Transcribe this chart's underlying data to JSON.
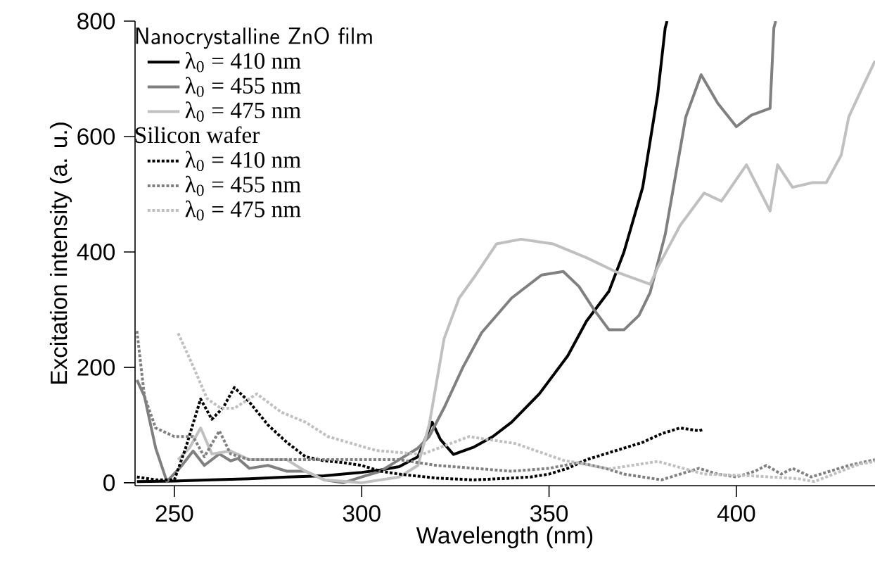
{
  "chart_data": {
    "type": "line",
    "xlabel": "Wavelength (nm)",
    "ylabel": "Excitation intensity (a. u.)",
    "legend_title": "Nanocrystalline ZnO film",
    "annotations": [
      "Silicon wafer"
    ],
    "xlim": [
      239.5,
      437
    ],
    "ylim": [
      -5,
      800
    ],
    "xticks": [
      250,
      300,
      350,
      400
    ],
    "yticks": [
      0,
      200,
      400,
      600,
      800
    ],
    "legend": "top left",
    "grid": false,
    "marker": "none",
    "series": [
      {
        "name": "λ$_{0}$ = 410 nm",
        "color": "#000000",
        "line_style": "solid",
        "x": [
          240,
          250,
          260,
          270,
          280,
          290,
          300,
          305,
          310,
          315,
          318.8,
          321,
          324.5,
          330,
          335,
          340,
          347.4,
          355,
          360,
          366,
          370,
          375,
          379,
          381,
          381.5
        ],
        "values": [
          2,
          3,
          5,
          7,
          10,
          12,
          18,
          22,
          28,
          45,
          105,
          75,
          49,
          62,
          80,
          105,
          154,
          220,
          280,
          332,
          400,
          512,
          673,
          788,
          800
        ]
      },
      {
        "name": "λ$_{0}$ = 455 nm",
        "color": "#808080",
        "line_style": "solid",
        "x": [
          240,
          242,
          245,
          248,
          252,
          255,
          258,
          262,
          265,
          267,
          270,
          275,
          280,
          285,
          290,
          295,
          300,
          305,
          310,
          315,
          318,
          322,
          327,
          332,
          340,
          348,
          353.8,
          358,
          362,
          366,
          370,
          374,
          377,
          381,
          386.5,
          390.6,
          395,
          400,
          404,
          409,
          410,
          410.5
        ],
        "values": [
          178,
          150,
          60,
          2,
          30,
          55,
          30,
          50,
          38,
          42,
          25,
          30,
          20,
          20,
          5,
          0,
          10,
          20,
          40,
          60,
          80,
          130,
          200,
          260,
          320,
          360,
          366,
          340,
          300,
          265,
          265,
          290,
          330,
          430,
          634,
          707,
          658,
          617,
          637,
          649,
          788,
          800
        ]
      },
      {
        "name": "λ$_{0}$ = 475 nm",
        "color": "#c0c0c0",
        "line_style": "solid",
        "x": [
          251,
          254,
          257,
          260,
          265,
          270,
          280,
          285,
          290,
          300,
          310,
          315,
          318,
          322,
          326,
          330,
          336,
          342.5,
          351,
          360,
          367.7,
          377,
          379,
          385,
          391.4,
          396,
          402.7,
          409,
          411,
          415,
          420.3,
          424,
          428,
          430,
          434,
          437
        ],
        "values": [
          40,
          60,
          95,
          50,
          55,
          40,
          40,
          20,
          5,
          0,
          10,
          30,
          100,
          250,
          320,
          356,
          414,
          422,
          414,
          390,
          366,
          344,
          373,
          446,
          502,
          488,
          551,
          471,
          551,
          512,
          520,
          520,
          568,
          634,
          690,
          731
        ]
      },
      {
        "name": "λ$_{0}$ = 410 nm",
        "color": "#000000",
        "line_style": "dotted",
        "x": [
          240,
          245,
          250,
          253,
          257,
          260,
          263,
          266,
          270,
          275,
          280,
          285,
          290,
          295,
          300,
          305,
          310,
          320,
          330,
          340,
          345,
          350,
          355,
          360,
          365,
          370,
          375,
          380,
          385,
          390,
          391
        ],
        "values": [
          10,
          5,
          5,
          60,
          145,
          110,
          130,
          165,
          140,
          100,
          70,
          45,
          38,
          35,
          30,
          20,
          15,
          8,
          5,
          8,
          10,
          15,
          25,
          40,
          50,
          60,
          70,
          85,
          95,
          90,
          92
        ]
      },
      {
        "name": "λ$_{0}$ = 455 nm",
        "color": "#808080",
        "line_style": "dotted",
        "x": [
          240,
          242,
          245,
          250,
          255,
          258,
          262,
          265,
          270,
          280,
          290,
          300,
          310,
          320,
          330,
          340,
          350,
          358,
          365,
          370,
          375,
          380,
          385,
          390,
          395,
          400,
          405,
          408,
          412,
          415,
          420,
          425,
          430,
          437
        ],
        "values": [
          263,
          150,
          95,
          80,
          80,
          45,
          90,
          50,
          40,
          40,
          40,
          40,
          40,
          30,
          25,
          20,
          25,
          35,
          25,
          15,
          10,
          5,
          15,
          25,
          15,
          10,
          20,
          30,
          15,
          25,
          10,
          20,
          30,
          40
        ]
      },
      {
        "name": "λ$_{0}$ = 475 nm",
        "color": "#c0c0c0",
        "line_style": "dotted",
        "x": [
          251,
          255,
          258.7,
          262.4,
          266,
          272,
          278.6,
          285,
          291,
          303.8,
          316,
          328.6,
          341,
          353.8,
          366,
          379,
          391.4,
          404,
          416.6,
          420.8,
          432.7,
          437
        ],
        "values": [
          259,
          202,
          146,
          129,
          129,
          154,
          122,
          105,
          80,
          56,
          49,
          80,
          68,
          39,
          24,
          37,
          15,
          12,
          7,
          2,
          32,
          37
        ]
      }
    ]
  }
}
